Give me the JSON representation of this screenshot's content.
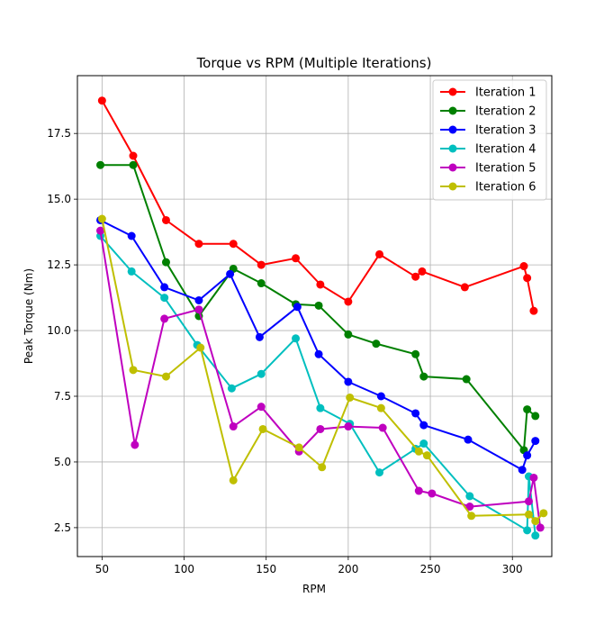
{
  "chart_data": {
    "type": "line",
    "title": "Torque vs RPM (Multiple Iterations)",
    "xlabel": "RPM",
    "ylabel": "Peak Torque (Nm)",
    "xlim": [
      35,
      324
    ],
    "ylim": [
      1.4,
      19.7
    ],
    "xticks": [
      50,
      100,
      150,
      200,
      250,
      300
    ],
    "yticks": [
      2.5,
      5.0,
      7.5,
      10.0,
      12.5,
      15.0,
      17.5
    ],
    "xtick_labels": [
      "50",
      "100",
      "150",
      "200",
      "250",
      "300"
    ],
    "ytick_labels": [
      "2.5",
      "5.0",
      "7.5",
      "10.0",
      "12.5",
      "15.0",
      "17.5"
    ],
    "grid": true,
    "legend_position": "top-right",
    "series": [
      {
        "name": "Iteration 1",
        "color": "#ff0000",
        "x": [
          50,
          69,
          89,
          109,
          130,
          147,
          168,
          183,
          200,
          219,
          241,
          245,
          271,
          307,
          309,
          313
        ],
        "y": [
          18.75,
          16.65,
          14.2,
          13.3,
          13.3,
          12.5,
          12.75,
          11.75,
          11.1,
          12.9,
          12.05,
          12.25,
          11.65,
          12.45,
          12.0,
          10.75
        ]
      },
      {
        "name": "Iteration 2",
        "color": "#008000",
        "x": [
          49,
          69,
          89,
          109,
          130,
          147,
          168,
          182,
          200,
          217,
          241,
          246,
          272,
          307,
          309,
          314
        ],
        "y": [
          16.3,
          16.3,
          12.6,
          10.55,
          12.35,
          11.8,
          11.0,
          10.95,
          9.85,
          9.5,
          9.1,
          8.25,
          8.15,
          5.45,
          7.0,
          6.75
        ]
      },
      {
        "name": "Iteration 3",
        "color": "#0000ff",
        "x": [
          49,
          68,
          88,
          109,
          128,
          146,
          169,
          182,
          200,
          220,
          241,
          246,
          273,
          306,
          309,
          314
        ],
        "y": [
          14.2,
          13.6,
          11.65,
          11.15,
          12.15,
          9.75,
          10.9,
          9.1,
          8.05,
          7.5,
          6.85,
          6.4,
          5.85,
          4.7,
          5.25,
          5.8
        ]
      },
      {
        "name": "Iteration 4",
        "color": "#00bfbf",
        "x": [
          49,
          68,
          88,
          108,
          129,
          147,
          168,
          183,
          201,
          219,
          241,
          246,
          274,
          309,
          310,
          314
        ],
        "y": [
          13.6,
          12.25,
          11.25,
          9.45,
          7.8,
          8.35,
          9.7,
          7.05,
          6.45,
          4.6,
          5.5,
          5.7,
          3.7,
          2.4,
          4.45,
          2.2
        ]
      },
      {
        "name": "Iteration 5",
        "color": "#bf00bf",
        "x": [
          49,
          70,
          88,
          109,
          130,
          147,
          170,
          183,
          200,
          221,
          243,
          251,
          274,
          310,
          313,
          317
        ],
        "y": [
          13.8,
          5.65,
          10.45,
          10.8,
          6.35,
          7.1,
          5.4,
          6.25,
          6.35,
          6.3,
          3.9,
          3.8,
          3.3,
          3.5,
          4.4,
          2.5
        ]
      },
      {
        "name": "Iteration 6",
        "color": "#bfbf00",
        "x": [
          50,
          69,
          89,
          110,
          130,
          148,
          170,
          184,
          201,
          220,
          243,
          248,
          275,
          310,
          314,
          319
        ],
        "y": [
          14.25,
          8.5,
          8.25,
          9.35,
          4.3,
          6.25,
          5.55,
          4.8,
          7.45,
          7.05,
          5.4,
          5.25,
          2.95,
          3.0,
          2.75,
          3.05
        ]
      }
    ]
  }
}
